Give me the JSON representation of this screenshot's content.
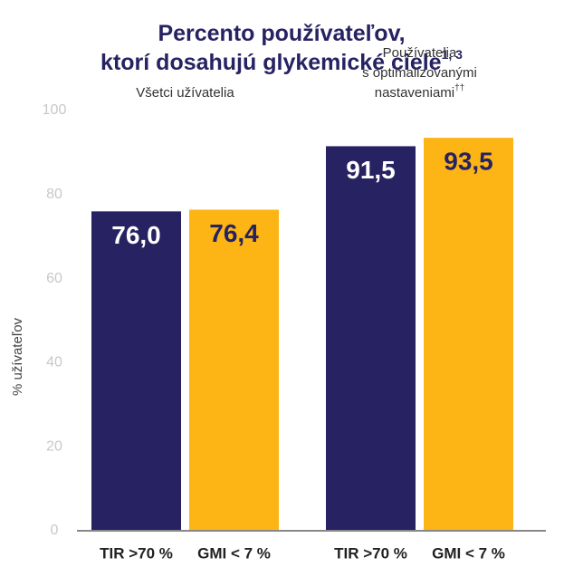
{
  "chart_data": {
    "type": "bar",
    "title": [
      "Percento používateľov,",
      "ktorí dosahujú glykemické ciele"
    ],
    "title_note": "1, 3",
    "categories": [
      [
        "Všetci užívatelia"
      ],
      [
        "Používatelia",
        "s optimalizovanými",
        "nastaveniami"
      ]
    ],
    "category_notes": [
      null,
      "††"
    ],
    "series": [
      {
        "name": "TIR >70 %",
        "color": "#272262",
        "values": [
          76.0,
          91.5
        ],
        "value_labels": [
          "76,0",
          "91,5"
        ]
      },
      {
        "name": "GMI < 7 %",
        "color": "#fdb515",
        "values": [
          76.4,
          93.5
        ],
        "value_labels": [
          "76,4",
          "93,5"
        ]
      }
    ],
    "ylabel": "% užívateľov",
    "ylim": [
      0,
      100
    ],
    "yticks": [
      0,
      20,
      40,
      60,
      80,
      100
    ],
    "grid": false
  }
}
